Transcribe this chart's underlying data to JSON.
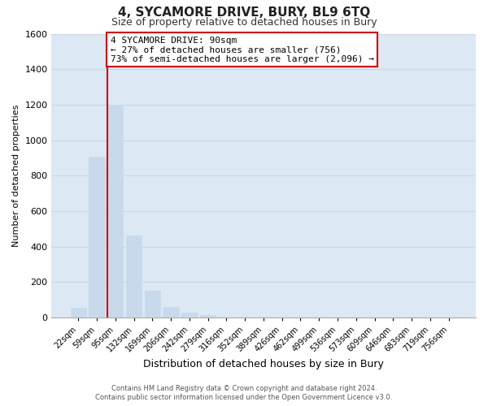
{
  "title": "4, SYCAMORE DRIVE, BURY, BL9 6TQ",
  "subtitle": "Size of property relative to detached houses in Bury",
  "xlabel": "Distribution of detached houses by size in Bury",
  "ylabel": "Number of detached properties",
  "categories": [
    "22sqm",
    "59sqm",
    "95sqm",
    "132sqm",
    "169sqm",
    "206sqm",
    "242sqm",
    "279sqm",
    "316sqm",
    "352sqm",
    "389sqm",
    "426sqm",
    "462sqm",
    "499sqm",
    "536sqm",
    "573sqm",
    "609sqm",
    "646sqm",
    "683sqm",
    "719sqm",
    "756sqm"
  ],
  "values": [
    55,
    905,
    1195,
    465,
    150,
    60,
    30,
    15,
    0,
    0,
    0,
    0,
    0,
    0,
    0,
    0,
    0,
    0,
    0,
    0,
    0
  ],
  "bar_color": "#c8d9ec",
  "highlight_bar_index": 2,
  "highlight_line_color": "#cc0000",
  "ylim": [
    0,
    1600
  ],
  "yticks": [
    0,
    200,
    400,
    600,
    800,
    1000,
    1200,
    1400,
    1600
  ],
  "annotation_line1": "4 SYCAMORE DRIVE: 90sqm",
  "annotation_line2": "← 27% of detached houses are smaller (756)",
  "annotation_line3": "73% of semi-detached houses are larger (2,096) →",
  "annotation_box_color": "#ffffff",
  "annotation_box_edge_color": "#cc0000",
  "grid_color": "#c8d8e8",
  "background_color": "#dce8f4",
  "footer_line1": "Contains HM Land Registry data © Crown copyright and database right 2024.",
  "footer_line2": "Contains public sector information licensed under the Open Government Licence v3.0."
}
